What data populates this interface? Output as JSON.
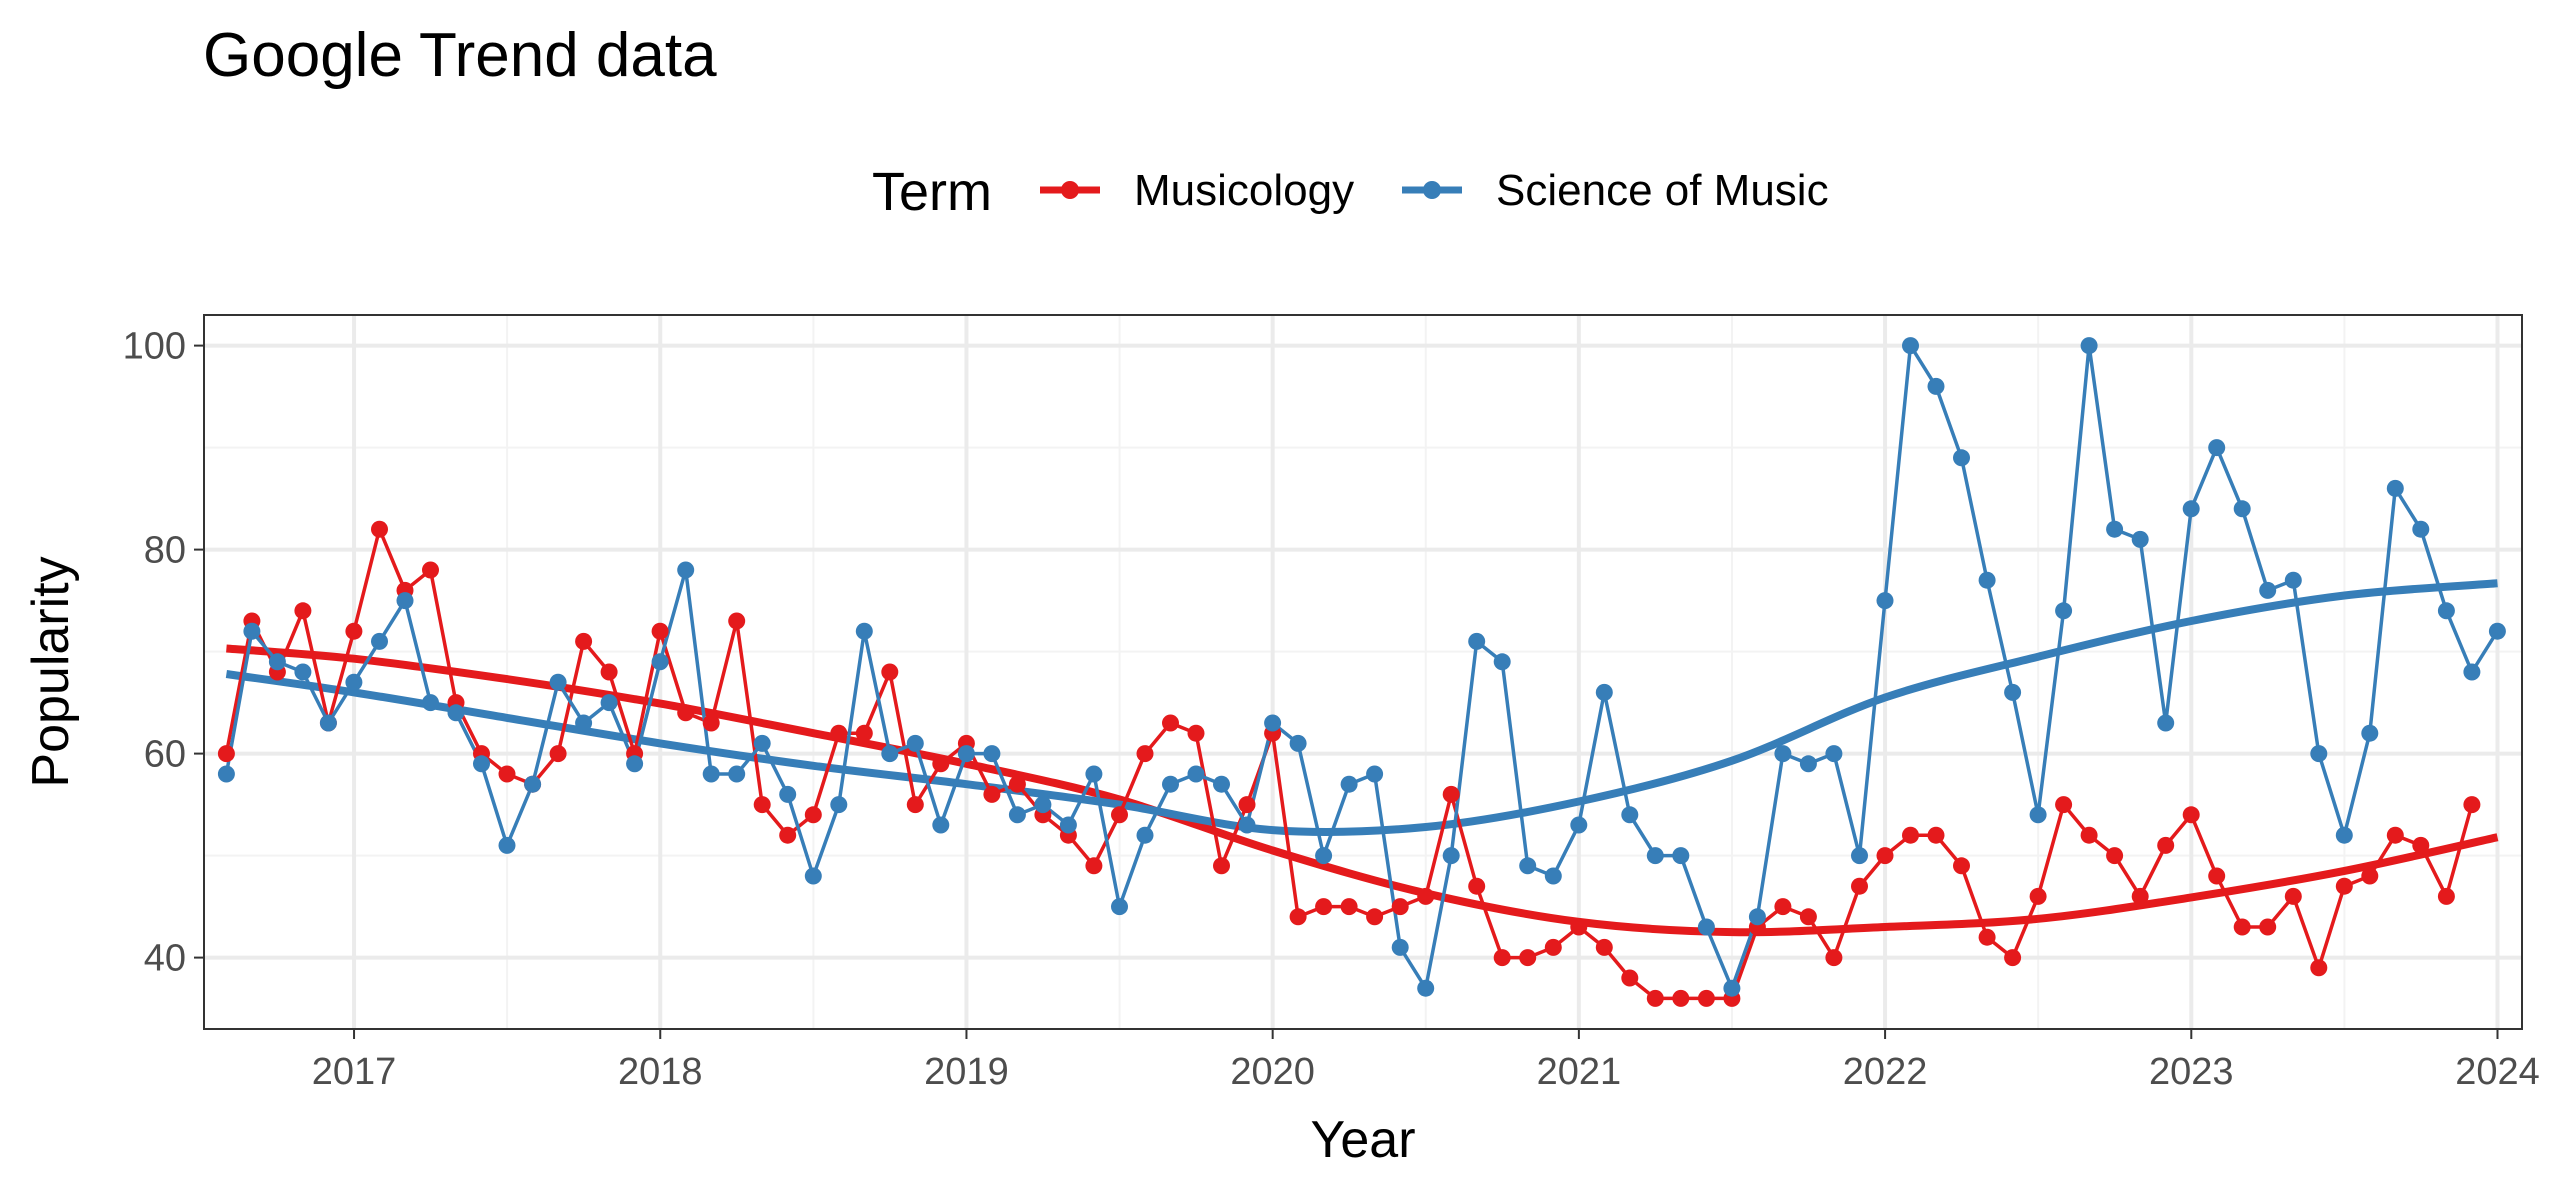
{
  "chart_data": {
    "type": "line",
    "title": "Google Trend data",
    "xlabel": "Year",
    "ylabel": "Popularity",
    "x_ticks": [
      "2017",
      "2018",
      "2019",
      "2020",
      "2021",
      "2022",
      "2023",
      "2024"
    ],
    "y_ticks": [
      40,
      60,
      80,
      100
    ],
    "xlim": [
      2016.51,
      2024.08
    ],
    "ylim": [
      33,
      103
    ],
    "grid": true,
    "legend": {
      "title": "Term",
      "position": "top"
    },
    "series": [
      {
        "name": "Musicology",
        "color": "#e41a1c",
        "x_start": 2016.583,
        "x_step": 0.0833333,
        "values": [
          60,
          73,
          68,
          74,
          63,
          72,
          82,
          76,
          78,
          65,
          60,
          58,
          57,
          60,
          71,
          68,
          60,
          72,
          64,
          63,
          73,
          55,
          52,
          54,
          62,
          62,
          68,
          55,
          59,
          61,
          56,
          57,
          54,
          52,
          49,
          54,
          60,
          63,
          62,
          49,
          55,
          62,
          44,
          45,
          45,
          44,
          45,
          46,
          56,
          47,
          40,
          40,
          41,
          43,
          41,
          38,
          36,
          36,
          36,
          36,
          43,
          45,
          44,
          40,
          47,
          50,
          52,
          52,
          49,
          42,
          40,
          46,
          55,
          52,
          50,
          46,
          51,
          54,
          48,
          43,
          43,
          46,
          39,
          47,
          48,
          52,
          51,
          46,
          55
        ],
        "trend": [
          [
            2016.583,
            70.3
          ],
          [
            2017.0,
            69.3
          ],
          [
            2017.5,
            67.3
          ],
          [
            2018.0,
            64.9
          ],
          [
            2018.5,
            62.0
          ],
          [
            2019.0,
            59.0
          ],
          [
            2019.5,
            55.5
          ],
          [
            2020.0,
            50.5
          ],
          [
            2020.5,
            46.3
          ],
          [
            2021.0,
            43.5
          ],
          [
            2021.5,
            42.5
          ],
          [
            2022.0,
            43.0
          ],
          [
            2022.5,
            43.8
          ],
          [
            2023.0,
            45.9
          ],
          [
            2023.5,
            48.5
          ],
          [
            2024.0,
            51.8
          ]
        ]
      },
      {
        "name": "Science of Music",
        "color": "#377eb8",
        "x_start": 2016.583,
        "x_step": 0.0833333,
        "values": [
          58,
          72,
          69,
          68,
          63,
          67,
          71,
          75,
          65,
          64,
          59,
          51,
          57,
          67,
          63,
          65,
          59,
          69,
          78,
          58,
          58,
          61,
          56,
          48,
          55,
          72,
          60,
          61,
          53,
          60,
          60,
          54,
          55,
          53,
          58,
          45,
          52,
          57,
          58,
          57,
          53,
          63,
          61,
          50,
          57,
          58,
          41,
          37,
          50,
          71,
          69,
          49,
          48,
          53,
          66,
          54,
          50,
          50,
          43,
          37,
          44,
          60,
          59,
          60,
          50,
          75,
          100,
          96,
          89,
          77,
          66,
          54,
          74,
          100,
          82,
          81,
          63,
          84,
          90,
          84,
          76,
          77,
          60,
          52,
          62,
          86,
          82,
          74,
          68,
          72
        ],
        "trend": [
          [
            2016.583,
            67.8
          ],
          [
            2017.0,
            66.0
          ],
          [
            2017.5,
            63.5
          ],
          [
            2018.0,
            61.0
          ],
          [
            2018.5,
            58.8
          ],
          [
            2019.0,
            57.0
          ],
          [
            2019.5,
            55.0
          ],
          [
            2020.0,
            52.5
          ],
          [
            2020.5,
            52.8
          ],
          [
            2021.0,
            55.3
          ],
          [
            2021.5,
            59.3
          ],
          [
            2022.0,
            65.5
          ],
          [
            2022.5,
            69.5
          ],
          [
            2023.0,
            73.0
          ],
          [
            2023.5,
            75.5
          ],
          [
            2024.0,
            76.7
          ]
        ]
      }
    ]
  }
}
